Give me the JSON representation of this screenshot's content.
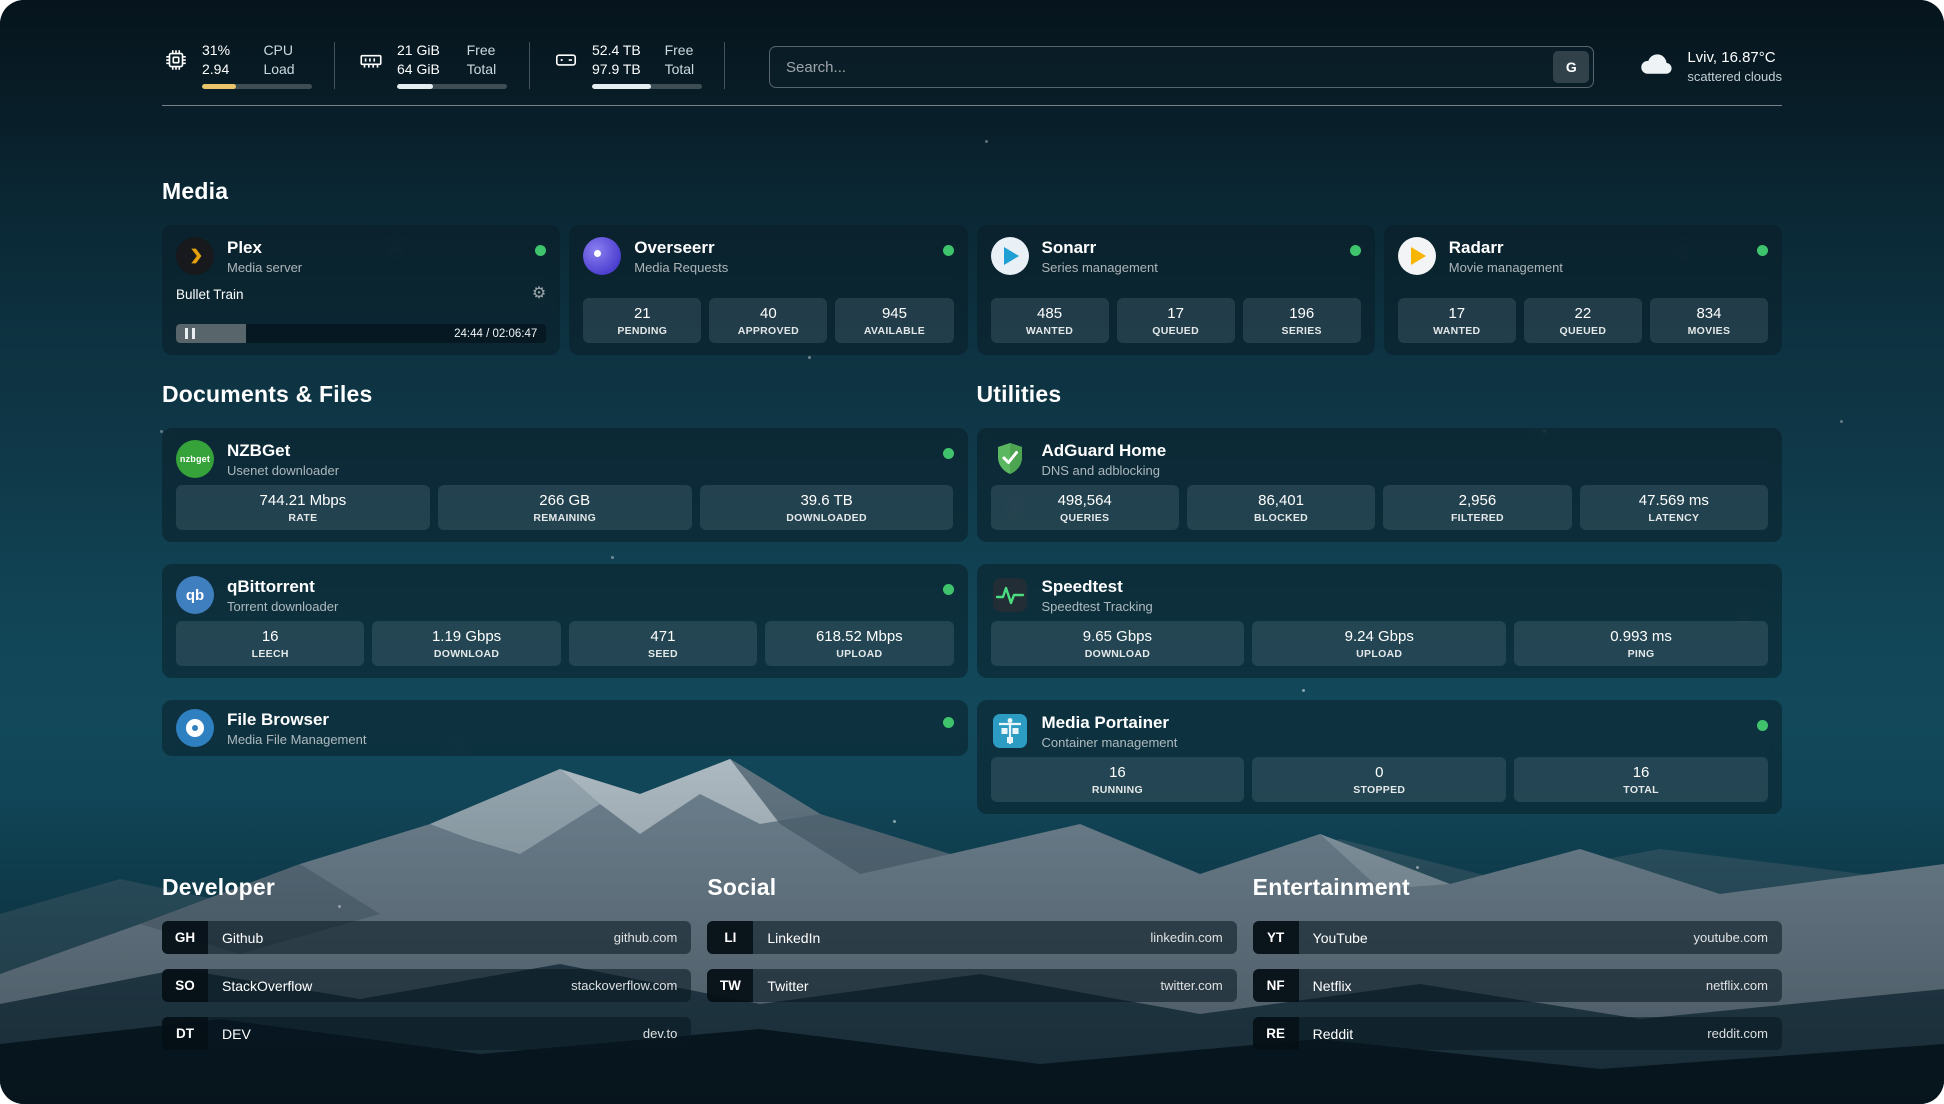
{
  "colors": {
    "status_online": "#3fc46d",
    "plex_accent": "#e5a00d",
    "cpu_bar": "#e9c46a"
  },
  "header": {
    "system": [
      {
        "name": "cpu",
        "val1": "31%",
        "lab1": "CPU",
        "val2": "2.94",
        "lab2": "Load",
        "progress": 31
      },
      {
        "name": "memory",
        "val1": "21 GiB",
        "lab1": "Free",
        "val2": "64 GiB",
        "lab2": "Total",
        "progress": 33
      },
      {
        "name": "disk",
        "val1": "52.4 TB",
        "lab1": "Free",
        "val2": "97.9 TB",
        "lab2": "Total",
        "progress": 54
      }
    ],
    "search": {
      "placeholder": "Search...",
      "engine_label": "G"
    },
    "weather": {
      "location": "Lviv, 16.87°C",
      "condition": "scattered clouds"
    }
  },
  "sections": {
    "media": {
      "title": "Media"
    },
    "documents": {
      "title": "Documents & Files"
    },
    "utilities": {
      "title": "Utilities"
    },
    "developer": {
      "title": "Developer"
    },
    "social": {
      "title": "Social"
    },
    "entertainment": {
      "title": "Entertainment"
    }
  },
  "apps": {
    "plex": {
      "name": "Plex",
      "desc": "Media server",
      "now_playing": "Bullet Train",
      "time": "24:44 / 02:06:47",
      "progress": 19
    },
    "overseerr": {
      "name": "Overseerr",
      "desc": "Media Requests",
      "stats": [
        {
          "value": "21",
          "label": "PENDING"
        },
        {
          "value": "40",
          "label": "APPROVED"
        },
        {
          "value": "945",
          "label": "AVAILABLE"
        }
      ]
    },
    "sonarr": {
      "name": "Sonarr",
      "desc": "Series management",
      "stats": [
        {
          "value": "485",
          "label": "WANTED"
        },
        {
          "value": "17",
          "label": "QUEUED"
        },
        {
          "value": "196",
          "label": "SERIES"
        }
      ]
    },
    "radarr": {
      "name": "Radarr",
      "desc": "Movie management",
      "stats": [
        {
          "value": "17",
          "label": "WANTED"
        },
        {
          "value": "22",
          "label": "QUEUED"
        },
        {
          "value": "834",
          "label": "MOVIES"
        }
      ]
    },
    "nzbget": {
      "name": "NZBGet",
      "desc": "Usenet downloader",
      "icon_text": "nzbget",
      "stats": [
        {
          "value": "744.21 Mbps",
          "label": "RATE"
        },
        {
          "value": "266 GB",
          "label": "REMAINING"
        },
        {
          "value": "39.6 TB",
          "label": "DOWNLOADED"
        }
      ]
    },
    "qbittorrent": {
      "name": "qBittorrent",
      "desc": "Torrent downloader",
      "icon_text": "qb",
      "stats": [
        {
          "value": "16",
          "label": "LEECH"
        },
        {
          "value": "1.19 Gbps",
          "label": "DOWNLOAD"
        },
        {
          "value": "471",
          "label": "SEED"
        },
        {
          "value": "618.52 Mbps",
          "label": "UPLOAD"
        }
      ]
    },
    "filebrowser": {
      "name": "File Browser",
      "desc": "Media File Management"
    },
    "adguard": {
      "name": "AdGuard Home",
      "desc": "DNS and adblocking",
      "stats": [
        {
          "value": "498,564",
          "label": "QUERIES"
        },
        {
          "value": "86,401",
          "label": "BLOCKED"
        },
        {
          "value": "2,956",
          "label": "FILTERED"
        },
        {
          "value": "47.569 ms",
          "label": "LATENCY"
        }
      ]
    },
    "speedtest": {
      "name": "Speedtest",
      "desc": "Speedtest Tracking",
      "stats": [
        {
          "value": "9.65 Gbps",
          "label": "DOWNLOAD"
        },
        {
          "value": "9.24 Gbps",
          "label": "UPLOAD"
        },
        {
          "value": "0.993 ms",
          "label": "PING"
        }
      ]
    },
    "portainer": {
      "name": "Media Portainer",
      "desc": "Container management",
      "stats": [
        {
          "value": "16",
          "label": "RUNNING"
        },
        {
          "value": "0",
          "label": "STOPPED"
        },
        {
          "value": "16",
          "label": "TOTAL"
        }
      ]
    }
  },
  "bookmarks": {
    "developer": [
      {
        "abbr": "GH",
        "name": "Github",
        "url": "github.com"
      },
      {
        "abbr": "SO",
        "name": "StackOverflow",
        "url": "stackoverflow.com"
      },
      {
        "abbr": "DT",
        "name": "DEV",
        "url": "dev.to"
      }
    ],
    "social": [
      {
        "abbr": "LI",
        "name": "LinkedIn",
        "url": "linkedin.com"
      },
      {
        "abbr": "TW",
        "name": "Twitter",
        "url": "twitter.com"
      }
    ],
    "entertainment": [
      {
        "abbr": "YT",
        "name": "YouTube",
        "url": "youtube.com"
      },
      {
        "abbr": "NF",
        "name": "Netflix",
        "url": "netflix.com"
      },
      {
        "abbr": "RE",
        "name": "Reddit",
        "url": "reddit.com"
      }
    ]
  }
}
